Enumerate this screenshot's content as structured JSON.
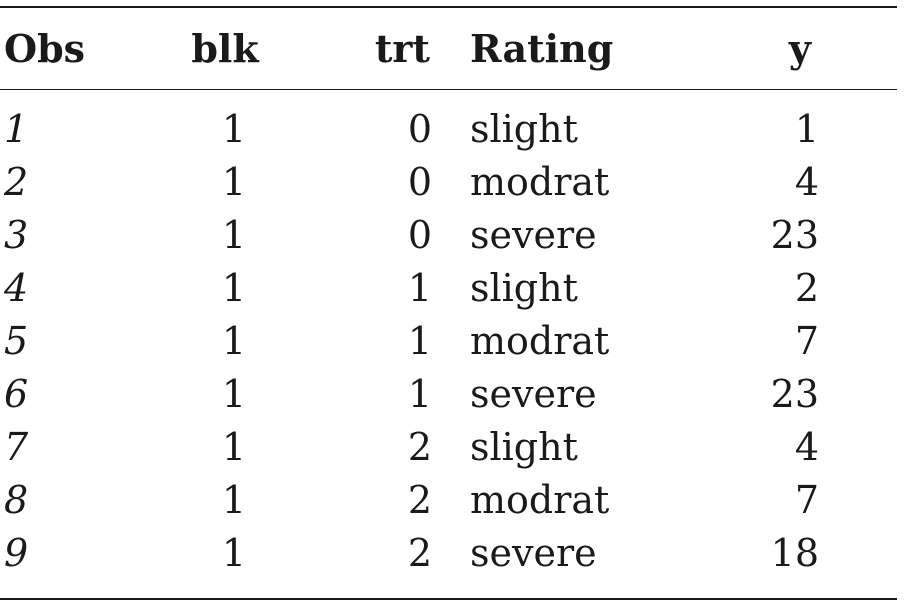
{
  "table": {
    "columns": [
      "Obs",
      "blk",
      "trt",
      "Rating",
      "y"
    ],
    "rows": [
      {
        "obs": "1",
        "blk": "1",
        "trt": "0",
        "rating": "slight",
        "y": "1"
      },
      {
        "obs": "2",
        "blk": "1",
        "trt": "0",
        "rating": "modrat",
        "y": "4"
      },
      {
        "obs": "3",
        "blk": "1",
        "trt": "0",
        "rating": "severe",
        "y": "23"
      },
      {
        "obs": "4",
        "blk": "1",
        "trt": "1",
        "rating": "slight",
        "y": "2"
      },
      {
        "obs": "5",
        "blk": "1",
        "trt": "1",
        "rating": "modrat",
        "y": "7"
      },
      {
        "obs": "6",
        "blk": "1",
        "trt": "1",
        "rating": "severe",
        "y": "23"
      },
      {
        "obs": "7",
        "blk": "1",
        "trt": "2",
        "rating": "slight",
        "y": "4"
      },
      {
        "obs": "8",
        "blk": "1",
        "trt": "2",
        "rating": "modrat",
        "y": "7"
      },
      {
        "obs": "9",
        "blk": "1",
        "trt": "2",
        "rating": "severe",
        "y": "18"
      }
    ]
  }
}
